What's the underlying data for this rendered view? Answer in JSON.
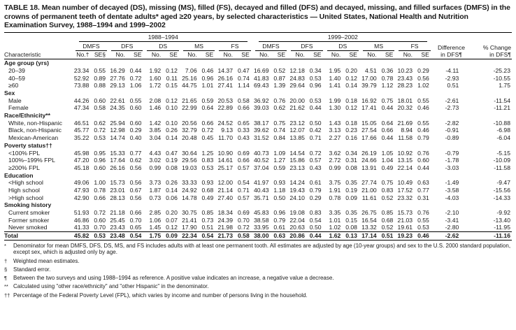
{
  "title": "TABLE 18. Mean number of decayed (DS), missing (MS), filled (FS), decayed and filled (DFS) and decayed, missing, and filled surfaces (DMFS) in the crowns of permanent teeth of dentate adults* aged ≥20 years, by selected characteristics — United States, National Health and Nutrition Examination Survey, 1988–1994 and 1999–2002",
  "table": {
    "characteristic_header": "Characteristic",
    "periods": [
      "1988–1994",
      "1999–2002"
    ],
    "measures": [
      "DMFS",
      "DFS",
      "DS",
      "MS",
      "FS"
    ],
    "subheaders_first": [
      "No.†",
      "SE§"
    ],
    "subheaders": [
      "No.",
      "SE"
    ],
    "difference_header": "Difference\nin DFS¶",
    "pct_change_header": "% Change\nin DFS¶",
    "sections": [
      {
        "label": "Age group (yrs)",
        "rows": [
          {
            "label": "20–39",
            "values": [
              "23.34",
              "0.55",
              "16.29",
              "0.44",
              "1.92",
              "0.12",
              "7.06",
              "0.46",
              "14.37",
              "0.47",
              "16.69",
              "0.52",
              "12.18",
              "0.34",
              "1.95",
              "0.20",
              "4.51",
              "0.36",
              "10.23",
              "0.29",
              "-4.11",
              "-25.23"
            ]
          },
          {
            "label": "40–59",
            "values": [
              "52.92",
              "0.89",
              "27.76",
              "0.72",
              "1.60",
              "0.11",
              "25.16",
              "0.96",
              "26.16",
              "0.74",
              "41.83",
              "0.87",
              "24.83",
              "0.53",
              "1.40",
              "0.12",
              "17.00",
              "0.78",
              "23.43",
              "0.56",
              "-2.93",
              "-10.55"
            ]
          },
          {
            "label": "≥60",
            "values": [
              "73.88",
              "0.88",
              "29.13",
              "1.06",
              "1.72",
              "0.15",
              "44.75",
              "1.01",
              "27.41",
              "1.14",
              "69.43",
              "1.39",
              "29.64",
              "0.96",
              "1.41",
              "0.14",
              "39.79",
              "1.12",
              "28.23",
              "1.02",
              "0.51",
              "1.75"
            ]
          }
        ]
      },
      {
        "label": "Sex",
        "rows": [
          {
            "label": "Male",
            "values": [
              "44.26",
              "0.60",
              "22.61",
              "0.55",
              "2.08",
              "0.12",
              "21.65",
              "0.59",
              "20.53",
              "0.58",
              "36.92",
              "0.76",
              "20.00",
              "0.53",
              "1.99",
              "0.18",
              "16.92",
              "0.75",
              "18.01",
              "0.55",
              "-2.61",
              "-11.54"
            ]
          },
          {
            "label": "Female",
            "values": [
              "47.34",
              "0.58",
              "24.35",
              "0.60",
              "1.46",
              "0.10",
              "22.99",
              "0.64",
              "22.89",
              "0.66",
              "39.03",
              "0.62",
              "21.62",
              "0.44",
              "1.30",
              "0.12",
              "17.41",
              "0.44",
              "20.32",
              "0.46",
              "-2.73",
              "-11.21"
            ]
          }
        ]
      },
      {
        "label": "Race/Ethnicity**",
        "rows": [
          {
            "label": "White, non-Hispanic",
            "values": [
              "46.51",
              "0.62",
              "25.94",
              "0.60",
              "1.42",
              "0.10",
              "20.56",
              "0.66",
              "24.52",
              "0.65",
              "38.17",
              "0.75",
              "23.12",
              "0.50",
              "1.43",
              "0.18",
              "15.05",
              "0.64",
              "21.69",
              "0.55",
              "-2.82",
              "-10.88"
            ]
          },
          {
            "label": "Black, non-Hispanic",
            "values": [
              "45.77",
              "0.72",
              "12.98",
              "0.29",
              "3.85",
              "0.26",
              "32.79",
              "0.72",
              "9.13",
              "0.33",
              "39.62",
              "0.74",
              "12.07",
              "0.42",
              "3.13",
              "0.23",
              "27.54",
              "0.66",
              "8.94",
              "0.46",
              "-0.91",
              "-6.98"
            ]
          },
          {
            "label": "Mexican-American",
            "values": [
              "35.22",
              "0.53",
              "14.74",
              "0.40",
              "3.04",
              "0.14",
              "20.48",
              "0.45",
              "11.70",
              "0.43",
              "31.52",
              "0.84",
              "13.85",
              "0.71",
              "2.27",
              "0.16",
              "17.66",
              "0.44",
              "11.58",
              "0.79",
              "-0.89",
              "-6.04"
            ]
          }
        ]
      },
      {
        "label": "Poverty status††",
        "rows": [
          {
            "label": "<100% FPL",
            "values": [
              "45.98",
              "0.95",
              "15.33",
              "0.77",
              "4.43",
              "0.47",
              "30.64",
              "1.25",
              "10.90",
              "0.69",
              "40.73",
              "1.09",
              "14.54",
              "0.72",
              "3.62",
              "0.34",
              "26.19",
              "1.05",
              "10.92",
              "0.76",
              "-0.79",
              "-5.15"
            ]
          },
          {
            "label": "100%–199% FPL",
            "values": [
              "47.20",
              "0.96",
              "17.64",
              "0.62",
              "3.02",
              "0.19",
              "29.56",
              "0.83",
              "14.61",
              "0.66",
              "40.52",
              "1.27",
              "15.86",
              "0.57",
              "2.72",
              "0.31",
              "24.66",
              "1.04",
              "13.15",
              "0.60",
              "-1.78",
              "-10.09"
            ]
          },
          {
            "label": "≥200% FPL",
            "values": [
              "45.18",
              "0.60",
              "26.16",
              "0.56",
              "0.99",
              "0.08",
              "19.03",
              "0.53",
              "25.17",
              "0.57",
              "37.04",
              "0.59",
              "23.13",
              "0.43",
              "0.99",
              "0.08",
              "13.91",
              "0.49",
              "22.14",
              "0.44",
              "-3.03",
              "-11.58"
            ]
          }
        ]
      },
      {
        "label": "Education",
        "rows": [
          {
            "label": "<High school",
            "values": [
              "49.06",
              "1.00",
              "15.73",
              "0.56",
              "3.73",
              "0.26",
              "33.33",
              "0.93",
              "12.00",
              "0.54",
              "41.97",
              "0.93",
              "14.24",
              "0.61",
              "3.75",
              "0.35",
              "27.74",
              "0.75",
              "10.49",
              "0.63",
              "-1.49",
              "-9.47"
            ]
          },
          {
            "label": "High school",
            "values": [
              "47.93",
              "0.78",
              "23.01",
              "0.67",
              "1.87",
              "0.14",
              "24.92",
              "0.68",
              "21.14",
              "0.71",
              "40.43",
              "1.18",
              "19.43",
              "0.79",
              "1.91",
              "0.19",
              "21.00",
              "0.83",
              "17.52",
              "0.77",
              "-3.58",
              "-15.56"
            ]
          },
          {
            "label": ">High school",
            "values": [
              "42.90",
              "0.66",
              "28.13",
              "0.56",
              "0.73",
              "0.06",
              "14.78",
              "0.49",
              "27.40",
              "0.57",
              "35.71",
              "0.50",
              "24.10",
              "0.29",
              "0.78",
              "0.09",
              "11.61",
              "0.52",
              "23.32",
              "0.31",
              "-4.03",
              "-14.33"
            ]
          }
        ]
      },
      {
        "label": "Smoking history",
        "rows": [
          {
            "label": "Current smoker",
            "values": [
              "51.93",
              "0.72",
              "21.18",
              "0.66",
              "2.85",
              "0.20",
              "30.75",
              "0.85",
              "18.34",
              "0.69",
              "45.83",
              "0.96",
              "19.08",
              "0.83",
              "3.35",
              "0.35",
              "26.75",
              "0.85",
              "15.73",
              "0.76",
              "-2.10",
              "-9.92"
            ]
          },
          {
            "label": "Former smoker",
            "values": [
              "46.86",
              "0.60",
              "25.45",
              "0.70",
              "1.06",
              "0.07",
              "21.41",
              "0.73",
              "24.39",
              "0.70",
              "38.58",
              "0.79",
              "22.04",
              "0.54",
              "1.01",
              "0.15",
              "16.54",
              "0.68",
              "21.03",
              "0.55",
              "-3.41",
              "-13.40"
            ]
          },
          {
            "label": "Never smoked",
            "values": [
              "41.33",
              "0.70",
              "23.43",
              "0.65",
              "1.45",
              "0.12",
              "17.90",
              "0.51",
              "21.98",
              "0.72",
              "33.95",
              "0.61",
              "20.63",
              "0.50",
              "1.02",
              "0.08",
              "13.32",
              "0.52",
              "19.61",
              "0.53",
              "-2.80",
              "-11.95"
            ]
          }
        ]
      }
    ],
    "total_row": {
      "label": "Total",
      "values": [
        "45.82",
        "0.53",
        "23.48",
        "0.54",
        "1.75",
        "0.09",
        "22.34",
        "0.54",
        "21.73",
        "0.58",
        "38.00",
        "0.63",
        "20.86",
        "0.44",
        "1.62",
        "0.13",
        "17.14",
        "0.51",
        "19.23",
        "0.46",
        "-2.62",
        "-11.16"
      ]
    }
  },
  "footnotes": [
    {
      "marker": "*",
      "text": "Denominator for mean DMFS, DFS, DS, MS, and FS includes adults with at least one permanent tooth. All estimates are adjusted by age (10-year groups) and sex to the U.S. 2000 standard population, except sex, which is adjusted only by age."
    },
    {
      "marker": "†",
      "text": "Weighted mean estimates."
    },
    {
      "marker": "§",
      "text": "Standard error."
    },
    {
      "marker": "¶",
      "text": "Between the two surveys and using 1988–1994 as reference. A positive value indicates an increase, a negative value a decrease."
    },
    {
      "marker": "**",
      "text": "Calculated using \"other race/ethnicity\" and \"other Hispanic\" in the denominator."
    },
    {
      "marker": "††",
      "text": "Percentage of the Federal Poverty Level (FPL), which varies by income and number of persons living in the household."
    }
  ]
}
